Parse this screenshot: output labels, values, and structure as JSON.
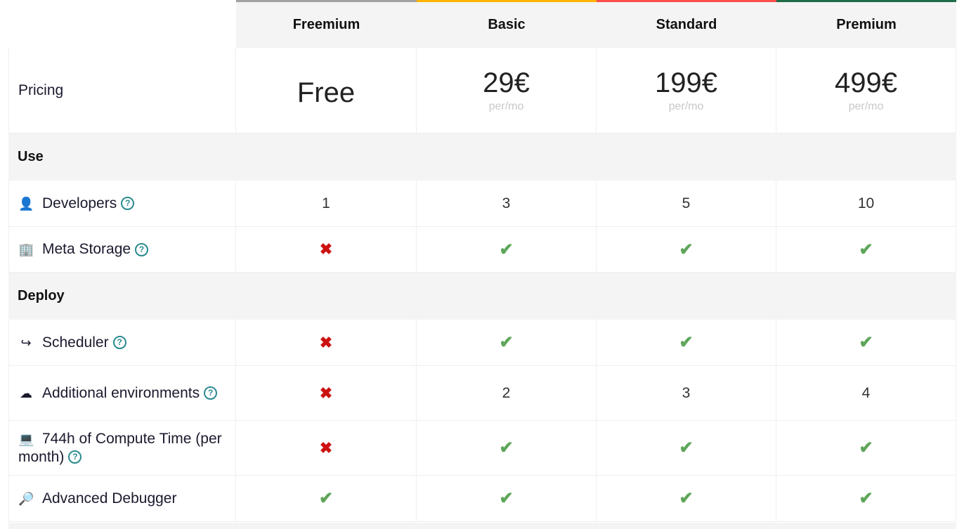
{
  "plans": [
    {
      "name": "Freemium",
      "color": "#a0a29f",
      "price": "Free",
      "period": ""
    },
    {
      "name": "Basic",
      "color": "#fcb400",
      "price": "29€",
      "period": "per/mo"
    },
    {
      "name": "Standard",
      "color": "#fc4c4c",
      "price": "199€",
      "period": "per/mo"
    },
    {
      "name": "Premium",
      "color": "#1e6b48",
      "price": "499€",
      "period": "per/mo"
    }
  ],
  "pricing_label": "Pricing",
  "help_glyph": "?",
  "sections": [
    {
      "title": "Use",
      "features": [
        {
          "label": "Developers",
          "icon": "person-icon",
          "glyph": "👤",
          "values": [
            "1",
            "3",
            "5",
            "10"
          ]
        },
        {
          "label": "Meta Storage",
          "icon": "building-icon",
          "glyph": "🏢",
          "values": [
            "cross",
            "check",
            "check",
            "check"
          ]
        }
      ]
    },
    {
      "title": "Deploy",
      "features": [
        {
          "label": "Scheduler",
          "icon": "arrow-loop-icon",
          "glyph": "↪",
          "values": [
            "cross",
            "check",
            "check",
            "check"
          ]
        },
        {
          "label": "Additional environments",
          "icon": "cloud-icon",
          "glyph": "☁",
          "values": [
            "cross",
            "2",
            "3",
            "4"
          ]
        },
        {
          "label": "744h of Compute Time (per month)",
          "icon": "laptop-icon",
          "glyph": "💻",
          "values": [
            "cross",
            "check",
            "check",
            "check"
          ]
        },
        {
          "label": "Advanced Debugger",
          "icon": "magnifier-icon",
          "glyph": "🔎",
          "values": [
            "check",
            "check",
            "check",
            "check"
          ],
          "no_help": true
        }
      ]
    }
  ]
}
